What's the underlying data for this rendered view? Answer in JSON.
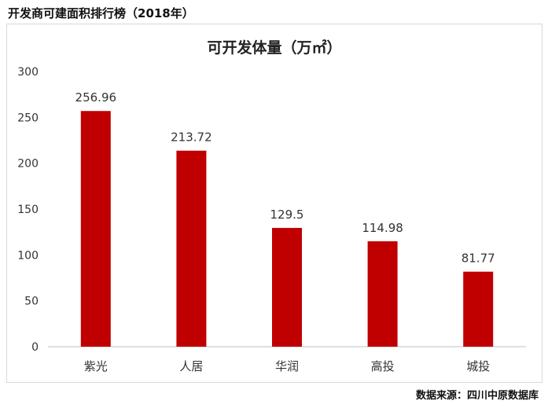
{
  "page": {
    "title": "开发商可建面积排行榜（2018年）",
    "source": "数据来源：四川中原数据库"
  },
  "chart_data": {
    "type": "bar",
    "title": "可开发体量（万㎡）",
    "xlabel": "",
    "ylabel": "",
    "categories": [
      "紫光",
      "人居",
      "华润",
      "高投",
      "城投"
    ],
    "values": [
      256.96,
      213.72,
      129.5,
      114.98,
      81.77
    ],
    "value_labels": [
      "256.96",
      "213.72",
      "129.5",
      "114.98",
      "81.77"
    ],
    "ylim": [
      0,
      300
    ],
    "yticks": [
      0,
      50,
      100,
      150,
      200,
      250,
      300
    ],
    "grid": false,
    "legend": "none",
    "bar_color": "#c00000"
  }
}
